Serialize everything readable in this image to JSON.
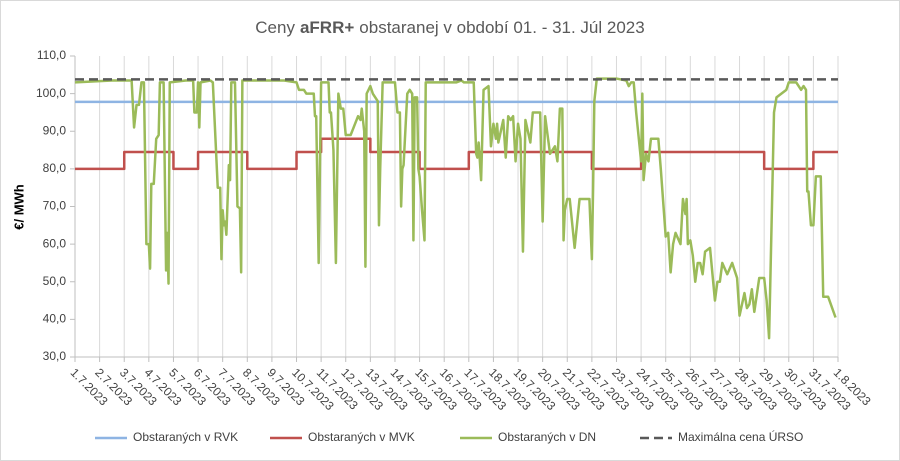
{
  "chart_data": {
    "type": "line",
    "title": [
      "Ceny",
      "aFRR+",
      "obstaranej v období 01. - 31. Júl 2023"
    ],
    "y_label": "€/ MWh",
    "xlim": [
      0,
      31
    ],
    "xticks": [
      {
        "value": 0,
        "label": "1.7.2023"
      },
      {
        "value": 1,
        "label": "2.7.2023"
      },
      {
        "value": 2,
        "label": "3.7.2023"
      },
      {
        "value": 3,
        "label": "4.7.2023"
      },
      {
        "value": 4,
        "label": "5.7.2023"
      },
      {
        "value": 5,
        "label": "6.7.2023"
      },
      {
        "value": 6,
        "label": "7.7.2023"
      },
      {
        "value": 7,
        "label": "8.7.2023"
      },
      {
        "value": 8,
        "label": "9.7.2023"
      },
      {
        "value": 9,
        "label": "10.7.2023"
      },
      {
        "value": 10,
        "label": "11.7.2023"
      },
      {
        "value": 11,
        "label": "12.7.2023"
      },
      {
        "value": 12,
        "label": "13.7.2023"
      },
      {
        "value": 13,
        "label": "14.7.2023"
      },
      {
        "value": 14,
        "label": "15.7.2023"
      },
      {
        "value": 15,
        "label": "16.7.2023"
      },
      {
        "value": 16,
        "label": "17.7.2023"
      },
      {
        "value": 17,
        "label": "18.7.2023"
      },
      {
        "value": 18,
        "label": "19.7.2023"
      },
      {
        "value": 19,
        "label": "20.7.2023"
      },
      {
        "value": 20,
        "label": "21.7.2023"
      },
      {
        "value": 21,
        "label": "22.7.2023"
      },
      {
        "value": 22,
        "label": "23.7.2023"
      },
      {
        "value": 23,
        "label": "24.7.2023"
      },
      {
        "value": 24,
        "label": "25.7.2023"
      },
      {
        "value": 25,
        "label": "26.7.2023"
      },
      {
        "value": 26,
        "label": "27.7.2023"
      },
      {
        "value": 27,
        "label": "28.7.2023"
      },
      {
        "value": 28,
        "label": "29.7.2023"
      },
      {
        "value": 29,
        "label": "30.7.2023"
      },
      {
        "value": 30,
        "label": "31.7.2023"
      },
      {
        "value": 31,
        "label": "1.8.2023"
      }
    ],
    "ylim": [
      30,
      110
    ],
    "yticks": [
      {
        "value": 30,
        "label": "30,0"
      },
      {
        "value": 40,
        "label": "40,0"
      },
      {
        "value": 50,
        "label": "50,0"
      },
      {
        "value": 60,
        "label": "60,0"
      },
      {
        "value": 70,
        "label": "70,0"
      },
      {
        "value": 80,
        "label": "80,0"
      },
      {
        "value": 90,
        "label": "90,0"
      },
      {
        "value": 100,
        "label": "100,0"
      },
      {
        "value": 110,
        "label": "110,0"
      }
    ],
    "grid": "x",
    "legend": "bottom",
    "series": [
      {
        "name": "Obstaraných v RVK",
        "color": "#8eb4e3",
        "x": [
          0,
          31
        ],
        "values": [
          97.8,
          97.8
        ]
      },
      {
        "name": "Obstaraných v MVK",
        "color": "#c0504d",
        "x": [
          0,
          2,
          2,
          4,
          4,
          5,
          5,
          7,
          7,
          9,
          9,
          10,
          10,
          12,
          12,
          14,
          14,
          16,
          16,
          21,
          21,
          23,
          23,
          28,
          28,
          30,
          30,
          31
        ],
        "values": [
          80,
          80,
          84.5,
          84.5,
          80,
          80,
          84.5,
          84.5,
          80,
          80,
          84.5,
          84.5,
          88,
          88,
          84.5,
          84.5,
          80,
          80,
          84.5,
          84.5,
          80,
          80,
          84.5,
          84.5,
          80,
          80,
          84.5,
          84.5
        ]
      },
      {
        "name": "Obstaraných v DN",
        "color": "#9bbb59",
        "x": [
          0,
          1.5,
          2.3,
          2.4,
          2.5,
          2.6,
          2.7,
          2.8,
          2.9,
          3.0,
          3.05,
          3.1,
          3.2,
          3.3,
          3.4,
          3.45,
          3.6,
          3.7,
          3.75,
          3.8,
          3.85,
          4.5,
          4.8,
          4.85,
          4.95,
          5.0,
          5.05,
          5.1,
          5.5,
          5.6,
          5.8,
          5.9,
          5.95,
          6.0,
          6.05,
          6.1,
          6.15,
          6.25,
          6.3,
          6.35,
          6.5,
          6.6,
          6.7,
          6.75,
          6.8,
          8.5,
          9.0,
          9.1,
          9.3,
          9.4,
          9.7,
          9.75,
          9.8,
          9.9,
          9.95,
          10.0,
          10.3,
          10.35,
          10.4,
          10.5,
          10.6,
          10.7,
          10.8,
          10.9,
          11.0,
          11.2,
          11.5,
          11.6,
          11.65,
          11.7,
          11.75,
          11.8,
          11.85,
          12.0,
          12.1,
          12.2,
          12.3,
          12.35,
          12.4,
          12.5,
          13.0,
          13.1,
          13.2,
          13.25,
          13.3,
          13.35,
          13.5,
          13.6,
          13.7,
          13.75,
          13.8,
          13.9,
          13.95,
          14.0,
          14.1,
          14.2,
          14.25,
          14.5,
          15.0,
          15.5,
          15.7,
          15.8,
          16.2,
          16.3,
          16.35,
          16.4,
          16.5,
          16.6,
          16.8,
          16.9,
          17.0,
          17.1,
          17.15,
          17.2,
          17.4,
          17.5,
          17.6,
          17.7,
          17.8,
          17.9,
          18.0,
          18.1,
          18.2,
          18.3,
          18.5,
          18.6,
          18.9,
          19.0,
          19.1,
          19.3,
          19.5,
          19.6,
          19.7,
          19.8,
          19.85,
          19.9,
          20.0,
          20.1,
          20.3,
          20.5,
          20.9,
          21.0,
          21.05,
          21.1,
          21.2,
          22.0,
          22.4,
          22.5,
          22.6,
          22.7,
          22.8,
          23.0,
          23.05,
          23.1,
          23.2,
          23.3,
          23.4,
          23.7,
          23.8,
          24.0,
          24.1,
          24.2,
          24.3,
          24.4,
          24.6,
          24.7,
          24.8,
          24.85,
          24.9,
          25.0,
          25.1,
          25.2,
          25.3,
          25.4,
          25.5,
          25.6,
          25.8,
          25.9,
          26.0,
          26.1,
          26.2,
          26.3,
          26.5,
          26.7,
          26.9,
          27.0,
          27.2,
          27.3,
          27.4,
          27.5,
          27.6,
          27.8,
          28.0,
          28.1,
          28.2,
          28.3,
          28.4,
          28.5,
          28.7,
          28.9,
          29.0,
          29.3,
          29.5,
          29.6,
          29.7,
          29.75,
          29.8,
          29.9,
          30.0,
          30.1,
          30.3,
          30.4,
          30.6,
          30.9
        ],
        "values": [
          103,
          103.5,
          103.5,
          91,
          97,
          97,
          103,
          103,
          60,
          60,
          53.5,
          76,
          76,
          88,
          89,
          103,
          103,
          53,
          63,
          49.5,
          103,
          103.5,
          103.5,
          95,
          95,
          103,
          91,
          103,
          103.5,
          103,
          75,
          75,
          56,
          69,
          65,
          66,
          62.5,
          81,
          77,
          103,
          103,
          70,
          69.5,
          52.5,
          103.5,
          103.5,
          103,
          101,
          101,
          100,
          100,
          94,
          94,
          55,
          80,
          103,
          103,
          95,
          95,
          85,
          55,
          100,
          96,
          96,
          89,
          89,
          94,
          93,
          96,
          93,
          90,
          54,
          100,
          102,
          100,
          99,
          98,
          65,
          80,
          103,
          103,
          95,
          95,
          70,
          80,
          81,
          100,
          101,
          100,
          61,
          99,
          99,
          80,
          78,
          69,
          61,
          103,
          103,
          103,
          103,
          103.5,
          103,
          103,
          84,
          83,
          87,
          77,
          101,
          102,
          86,
          92,
          88,
          92,
          87,
          93,
          83,
          94,
          93,
          94,
          82,
          92,
          88,
          58,
          93,
          87,
          95,
          95,
          66,
          94,
          84,
          86,
          82,
          96,
          96,
          61,
          69,
          72,
          72,
          59,
          72,
          72,
          56,
          75,
          98,
          104,
          104,
          103.5,
          102,
          103,
          103,
          95,
          82,
          100,
          77,
          84,
          82,
          88,
          88,
          80,
          62,
          63,
          52.5,
          60,
          63,
          60,
          72,
          68,
          72,
          60,
          61,
          57,
          50,
          55,
          55,
          52,
          58,
          59,
          52,
          45,
          50,
          50,
          55,
          52,
          55,
          51,
          41,
          47,
          43,
          44,
          48,
          42,
          51,
          51,
          45,
          35,
          65,
          95,
          99,
          100,
          101,
          103,
          103,
          101,
          102,
          101,
          74,
          74,
          65,
          65,
          78,
          78,
          46,
          46,
          40.5
        ]
      },
      {
        "name": "Maximálna cena ÚRSO",
        "color": "#595959",
        "dash": true,
        "x": [
          0,
          31
        ],
        "values": [
          103.8,
          103.8
        ]
      }
    ]
  }
}
